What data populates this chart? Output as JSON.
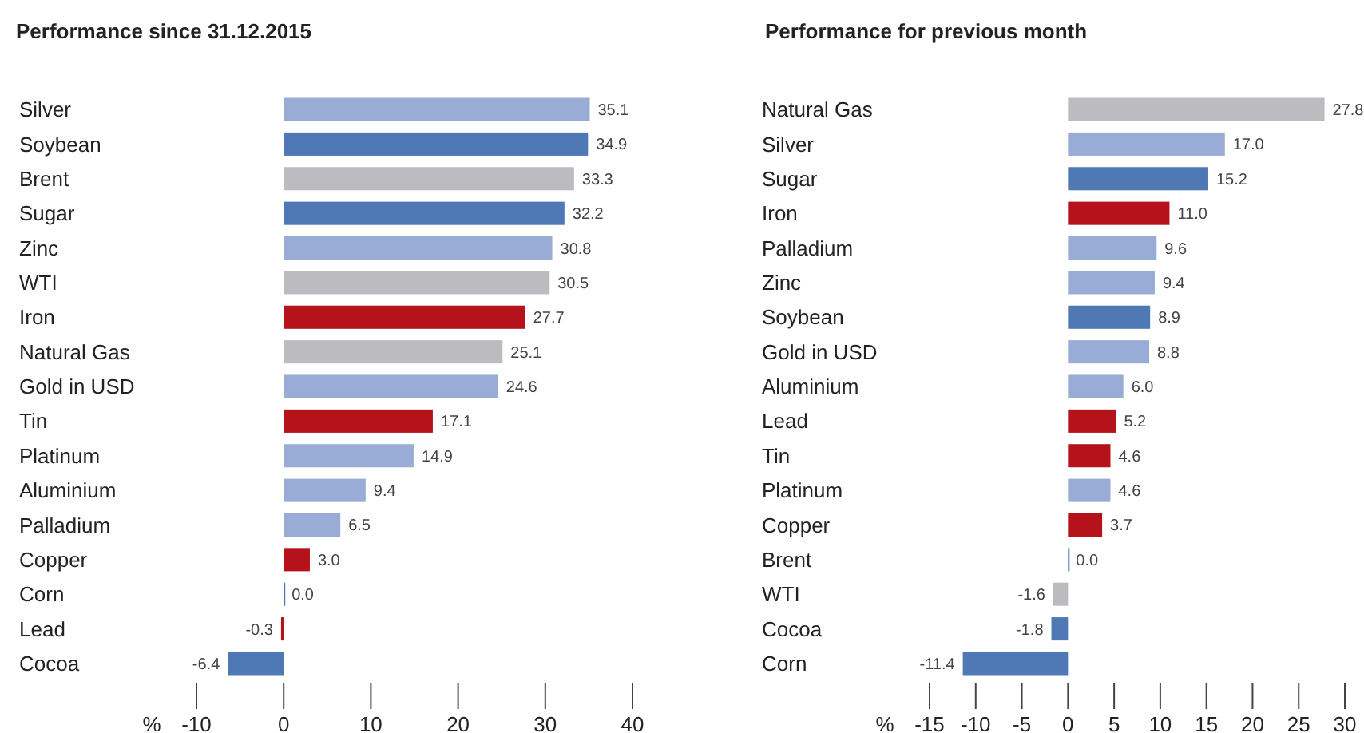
{
  "chart_data": [
    {
      "type": "bar",
      "orientation": "horizontal",
      "title": "Performance since 31.12.2015",
      "xlabel": "%",
      "grid": false,
      "categories": [
        "Silver",
        "Soybean",
        "Brent",
        "Sugar",
        "Zinc",
        "WTI",
        "Iron",
        "Natural Gas",
        "Gold in USD",
        "Tin",
        "Platinum",
        "Aluminium",
        "Palladium",
        "Copper",
        "Corn",
        "Lead",
        "Cocoa"
      ],
      "values": [
        35.1,
        34.9,
        33.3,
        32.2,
        30.8,
        30.5,
        27.7,
        25.1,
        24.6,
        17.1,
        14.9,
        9.4,
        6.5,
        3.0,
        0.0,
        -0.3,
        -6.4
      ],
      "value_labels": [
        "35.1",
        "34.9",
        "33.3",
        "32.2",
        "30.8",
        "30.5",
        "27.7",
        "25.1",
        "24.6",
        "17.1",
        "14.9",
        "9.4",
        "6.5",
        "3.0",
        "0.0",
        "-0.3",
        "-6.4"
      ],
      "colors": [
        "#98acd6",
        "#4f79b5",
        "#bcbcc0",
        "#4f79b5",
        "#98acd6",
        "#bcbcc0",
        "#b5121b",
        "#bcbcc0",
        "#98acd6",
        "#b5121b",
        "#98acd6",
        "#98acd6",
        "#98acd6",
        "#b5121b",
        "#4f79b5",
        "#b5121b",
        "#4f79b5"
      ],
      "xlim": [
        -10,
        40
      ],
      "xticks": [
        -10,
        0,
        10,
        20,
        30,
        40
      ]
    },
    {
      "type": "bar",
      "orientation": "horizontal",
      "title": "Performance for previous month",
      "xlabel": "%",
      "grid": false,
      "categories": [
        "Natural Gas",
        "Silver",
        "Sugar",
        "Iron",
        "Palladium",
        "Zinc",
        "Soybean",
        "Gold in USD",
        "Aluminium",
        "Lead",
        "Tin",
        "Platinum",
        "Copper",
        "Brent",
        "WTI",
        "Cocoa",
        "Corn"
      ],
      "values": [
        27.8,
        17.0,
        15.2,
        11.0,
        9.6,
        9.4,
        8.9,
        8.8,
        6.0,
        5.2,
        4.6,
        4.6,
        3.7,
        0.0,
        -1.6,
        -1.8,
        -11.4
      ],
      "value_labels": [
        "27.8",
        "17.0",
        "15.2",
        "11.0",
        "9.6",
        "9.4",
        "8.9",
        "8.8",
        "6.0",
        "5.2",
        "4.6",
        "4.6",
        "3.7",
        "0.0",
        "-1.6",
        "-1.8",
        "-11.4"
      ],
      "colors": [
        "#bcbcc0",
        "#98acd6",
        "#4f79b5",
        "#b5121b",
        "#98acd6",
        "#98acd6",
        "#4f79b5",
        "#98acd6",
        "#98acd6",
        "#b5121b",
        "#b5121b",
        "#98acd6",
        "#b5121b",
        "#4f79b5",
        "#bcbcc0",
        "#4f79b5",
        "#4f79b5"
      ],
      "xlim": [
        -15,
        30
      ],
      "xticks": [
        -15,
        -10,
        -5,
        0,
        5,
        10,
        15,
        20,
        25,
        30
      ]
    }
  ]
}
